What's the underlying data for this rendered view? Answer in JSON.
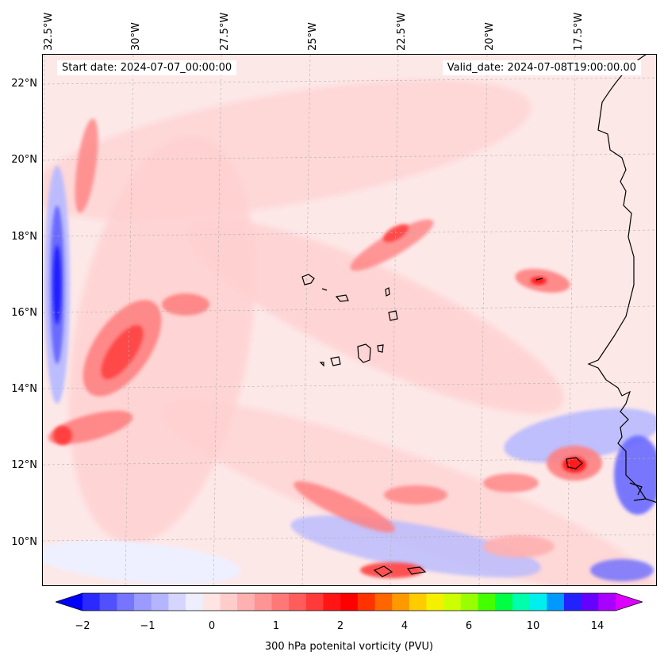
{
  "header": {
    "start_date": "Start date: 2024-07-07_00:00:00",
    "valid_date": "Valid_date: 2024-07-08T19:00:00.00"
  },
  "longitude_labels": [
    "32.5°W",
    "30°W",
    "27.5°W",
    "25°W",
    "22.5°W",
    "20°W",
    "17.5°W"
  ],
  "latitude_labels": [
    "22°N",
    "20°N",
    "18°N",
    "16°N",
    "14°N",
    "12°N",
    "10°N"
  ],
  "colorbar": {
    "label": "300 hPa potenital vorticity (PVU)",
    "tick_labels": [
      "−2",
      "−1",
      "0",
      "1",
      "2",
      "4",
      "6",
      "10",
      "14"
    ],
    "colors": [
      "#0000ff",
      "#2a2aff",
      "#5050ff",
      "#7575ff",
      "#9a9aff",
      "#b5b5ff",
      "#d5d5ff",
      "#eeeeff",
      "#ffe4e4",
      "#ffcccc",
      "#ffb0b0",
      "#ff9494",
      "#ff7878",
      "#ff5c5c",
      "#ff3a3a",
      "#ff1515",
      "#ff0000",
      "#ff3300",
      "#ff6600",
      "#ff9900",
      "#ffcc00",
      "#f5f000",
      "#ccff00",
      "#99ff00",
      "#44ff00",
      "#00ff44",
      "#00ffaa",
      "#00eeee",
      "#0099ff",
      "#2222ff",
      "#6600ff",
      "#aa00ff",
      "#dd00ff"
    ]
  },
  "map": {
    "region": "Cape Verde / West Africa coast",
    "colors": {
      "background_low": "#fde8e8",
      "pink_light": "#ffd0d0",
      "pink_mid": "#ffb0b0",
      "red_mid": "#ff8080",
      "red_strong": "#ff4040",
      "red_core": "#ff1a1a",
      "blue_light": "#eef0ff",
      "blue_mid": "#b8baff",
      "blue_strong": "#6a6aff",
      "blue_core": "#1a1aff",
      "coastline": "#000000",
      "gridline": "#b0b0b0"
    }
  }
}
